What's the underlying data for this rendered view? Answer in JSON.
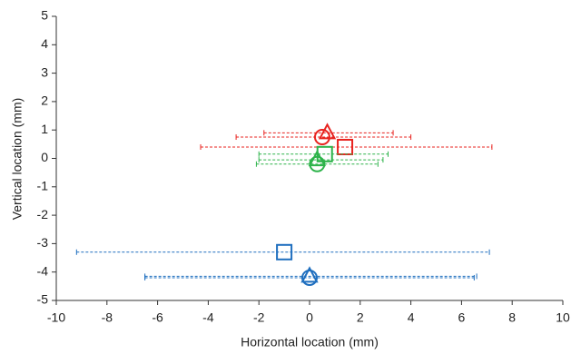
{
  "chart_data": {
    "type": "scatter",
    "x_label": "Horizontal location (mm)",
    "y_label": "Vertical location (mm)",
    "xlim": [
      -10,
      10
    ],
    "xticks": [
      -10,
      -8,
      -6,
      -4,
      -2,
      0,
      2,
      4,
      6,
      8,
      10
    ],
    "ylim": [
      -5,
      5
    ],
    "yticks": [
      -5,
      -4,
      -3,
      -2,
      -1,
      0,
      1,
      2,
      3,
      4,
      5
    ],
    "series": [
      {
        "color": "#e8231f",
        "points": [
          {
            "marker": "triangle",
            "x": 0.7,
            "y": 0.9,
            "x_low": -1.8,
            "x_high": 3.3
          },
          {
            "marker": "circle",
            "x": 0.5,
            "y": 0.75,
            "x_low": -2.9,
            "x_high": 4.0
          },
          {
            "marker": "square",
            "x": 1.4,
            "y": 0.4,
            "x_low": -4.3,
            "x_high": 7.2
          }
        ]
      },
      {
        "color": "#2db34a",
        "points": [
          {
            "marker": "square",
            "x": 0.6,
            "y": 0.15,
            "x_low": -2.0,
            "x_high": 3.1
          },
          {
            "marker": "triangle",
            "x": 0.3,
            "y": -0.05,
            "x_low": -2.0,
            "x_high": 2.9
          },
          {
            "marker": "circle",
            "x": 0.3,
            "y": -0.2,
            "x_low": -2.1,
            "x_high": 2.7
          }
        ]
      },
      {
        "color": "#1f6fbf",
        "points": [
          {
            "marker": "square",
            "x": -1.0,
            "y": -3.3,
            "x_low": -9.2,
            "x_high": 7.1
          },
          {
            "marker": "triangle",
            "x": 0.0,
            "y": -4.15,
            "x_low": -6.5,
            "x_high": 6.6
          },
          {
            "marker": "circle",
            "x": 0.0,
            "y": -4.2,
            "x_low": -6.5,
            "x_high": 6.5
          }
        ]
      }
    ]
  }
}
